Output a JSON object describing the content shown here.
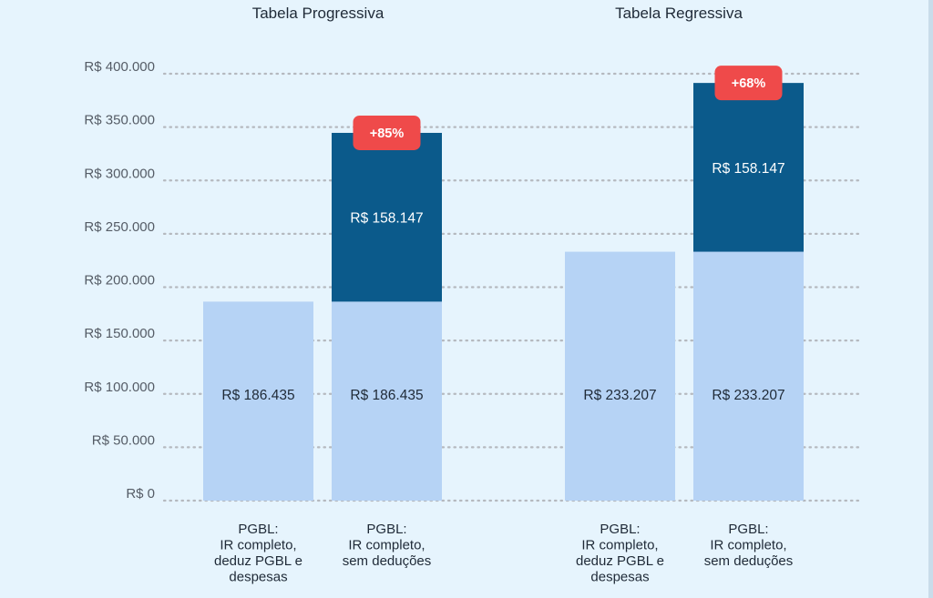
{
  "colors": {
    "background": "#e6f4fd",
    "base": "#b6d3f5",
    "increment": "#0b5a8b",
    "badge": "#ef4a4a",
    "text_dark": "#1f2a37",
    "axis_text": "#555c66",
    "grid": "#b5b9bf"
  },
  "chart_data": {
    "type": "bar",
    "stacked": true,
    "ylim": [
      0,
      400000
    ],
    "y_ticks": [
      {
        "value": 0,
        "label": "R$ 0"
      },
      {
        "value": 50000,
        "label": "R$ 50.000"
      },
      {
        "value": 100000,
        "label": "R$ 100.000"
      },
      {
        "value": 150000,
        "label": "R$ 150.000"
      },
      {
        "value": 200000,
        "label": "R$ 200.000"
      },
      {
        "value": 250000,
        "label": "R$ 250.000"
      },
      {
        "value": 300000,
        "label": "R$ 300.000"
      },
      {
        "value": 350000,
        "label": "R$ 350.000"
      },
      {
        "value": 400000,
        "label": "R$ 400.000"
      }
    ],
    "grid": true,
    "groups": [
      {
        "title": "Tabela Progressiva",
        "bars": [
          {
            "category": [
              "PGBL:",
              "IR completo,",
              "deduz PGBL e",
              "despesas"
            ],
            "segments": [
              {
                "value": 186435,
                "label": "R$ 186.435",
                "role": "base"
              }
            ]
          },
          {
            "category": [
              "PGBL:",
              "IR completo,",
              "sem deduções"
            ],
            "segments": [
              {
                "value": 186435,
                "label": "R$ 186.435",
                "role": "base"
              },
              {
                "value": 158147,
                "label": "R$ 158.147",
                "role": "increment"
              }
            ],
            "badge": "+85%"
          }
        ]
      },
      {
        "title": "Tabela Regressiva",
        "bars": [
          {
            "category": [
              "PGBL:",
              "IR completo,",
              "deduz PGBL e",
              "despesas"
            ],
            "segments": [
              {
                "value": 233207,
                "label": "R$ 233.207",
                "role": "base"
              }
            ]
          },
          {
            "category": [
              "PGBL:",
              "IR completo,",
              "sem deduções"
            ],
            "segments": [
              {
                "value": 233207,
                "label": "R$ 233.207",
                "role": "base"
              },
              {
                "value": 158147,
                "label": "R$ 158.147",
                "role": "increment"
              }
            ],
            "badge": "+68%"
          }
        ]
      }
    ]
  }
}
